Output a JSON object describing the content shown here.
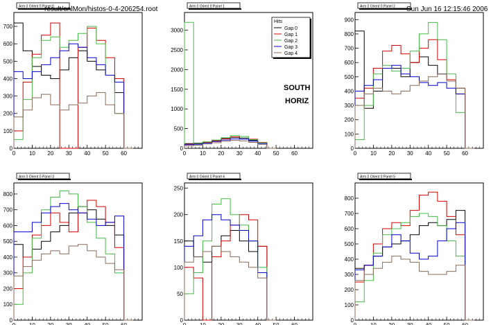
{
  "header": {
    "file_label": "result/onlMon/histos-0-4-206254.root",
    "timestamp": "Sun Jun 16 12:15:46 2006"
  },
  "annotation": {
    "line1": "SOUTH",
    "line2": "HORIZ"
  },
  "colors": {
    "gap0": "#000000",
    "gap1": "#d40000",
    "gap2": "#44bb44",
    "gap3": "#0000cc",
    "gap4": "#8b6a5a"
  },
  "legend": {
    "title": "Hits",
    "entries": [
      "Gap 0",
      "Gap 1",
      "Gap 2",
      "Gap 3",
      "Gap 4"
    ]
  },
  "chart_data": [
    {
      "type": "line",
      "title": "Arm 0 Orient 0 Panel 0",
      "xlim": [
        0,
        70
      ],
      "ylim": [
        0,
        780
      ],
      "xticks": [
        0,
        10,
        20,
        30,
        40,
        50,
        60
      ],
      "yticks": [
        0,
        100,
        200,
        300,
        400,
        500,
        600,
        700
      ],
      "series": [
        {
          "name": "Gap 0",
          "x": [
            0,
            5,
            10,
            15,
            20,
            25,
            30,
            35,
            40,
            45,
            50,
            55,
            60
          ],
          "y": [
            720,
            560,
            470,
            420,
            400,
            450,
            520,
            560,
            500,
            450,
            420,
            320,
            0
          ]
        },
        {
          "name": "Gap 1",
          "x": [
            0,
            5,
            10,
            15,
            20,
            25,
            30,
            35,
            40,
            45,
            50,
            55,
            60
          ],
          "y": [
            100,
            380,
            540,
            650,
            720,
            0,
            0,
            580,
            690,
            620,
            520,
            400,
            0
          ]
        },
        {
          "name": "Gap 2",
          "x": [
            0,
            5,
            10,
            15,
            20,
            25,
            30,
            35,
            40,
            45,
            50,
            55,
            60
          ],
          "y": [
            50,
            280,
            520,
            620,
            640,
            580,
            620,
            660,
            700,
            600,
            420,
            200,
            0
          ]
        },
        {
          "name": "Gap 3",
          "x": [
            0,
            5,
            10,
            15,
            20,
            25,
            30,
            35,
            40,
            45,
            50,
            55,
            60
          ],
          "y": [
            440,
            400,
            440,
            480,
            520,
            560,
            600,
            580,
            520,
            480,
            420,
            380,
            0
          ]
        },
        {
          "name": "Gap 4",
          "x": [
            0,
            5,
            10,
            15,
            20,
            25,
            30,
            35,
            40,
            45,
            50,
            55,
            60
          ],
          "y": [
            180,
            220,
            290,
            310,
            250,
            220,
            250,
            260,
            300,
            320,
            250,
            200,
            0
          ]
        }
      ]
    },
    {
      "type": "line",
      "title": "Arm 0 Orient 0 Panel 1",
      "xlim": [
        0,
        70
      ],
      "ylim": [
        0,
        3450
      ],
      "xticks": [
        0,
        10,
        20,
        30,
        40,
        50,
        60
      ],
      "yticks": [
        0,
        500,
        1000,
        1500,
        2000,
        2500,
        3000
      ],
      "series": [
        {
          "name": "Gap 0",
          "x": [
            0,
            5,
            10,
            15,
            20,
            25,
            30,
            35,
            40,
            45
          ],
          "y": [
            120,
            130,
            160,
            200,
            250,
            280,
            260,
            200,
            140,
            0
          ]
        },
        {
          "name": "Gap 1",
          "x": [
            0,
            5,
            10,
            15,
            20,
            25,
            30,
            35,
            40,
            45
          ],
          "y": [
            100,
            110,
            150,
            190,
            240,
            290,
            300,
            230,
            150,
            0
          ]
        },
        {
          "name": "Gap 2",
          "x": [
            0,
            5,
            10,
            15,
            20,
            25,
            30,
            35,
            40,
            45
          ],
          "y": [
            3200,
            120,
            160,
            210,
            270,
            320,
            300,
            220,
            140,
            0
          ]
        },
        {
          "name": "Gap 3",
          "x": [
            0,
            5,
            10,
            15,
            20,
            25,
            30,
            35,
            40,
            45
          ],
          "y": [
            90,
            100,
            130,
            170,
            210,
            240,
            230,
            180,
            120,
            0
          ]
        },
        {
          "name": "Gap 4",
          "x": [
            0,
            5,
            10,
            15,
            20,
            25,
            30,
            35,
            40,
            45
          ],
          "y": [
            60,
            80,
            110,
            140,
            180,
            200,
            190,
            150,
            100,
            0
          ]
        }
      ]
    },
    {
      "type": "line",
      "title": "Arm 0 Orient 0 Panel 2",
      "xlim": [
        0,
        70
      ],
      "ylim": [
        0,
        950
      ],
      "xticks": [
        0,
        10,
        20,
        30,
        40,
        50,
        60
      ],
      "yticks": [
        0,
        100,
        200,
        300,
        400,
        500,
        600,
        700,
        800,
        900
      ],
      "series": [
        {
          "name": "Gap 0",
          "x": [
            0,
            5,
            10,
            15,
            20,
            25,
            30,
            35,
            40,
            45,
            50,
            55,
            60
          ],
          "y": [
            820,
            280,
            400,
            560,
            560,
            500,
            600,
            640,
            580,
            520,
            480,
            420,
            0
          ]
        },
        {
          "name": "Gap 1",
          "x": [
            0,
            5,
            10,
            15,
            20,
            25,
            30,
            35,
            40,
            45,
            50,
            55,
            60
          ],
          "y": [
            350,
            420,
            560,
            680,
            720,
            660,
            600,
            700,
            760,
            620,
            480,
            380,
            0
          ]
        },
        {
          "name": "Gap 2",
          "x": [
            0,
            5,
            10,
            15,
            20,
            25,
            30,
            35,
            40,
            45,
            50,
            55,
            60
          ],
          "y": [
            60,
            300,
            520,
            580,
            540,
            560,
            680,
            800,
            880,
            760,
            520,
            250,
            0
          ]
        },
        {
          "name": "Gap 3",
          "x": [
            0,
            5,
            10,
            15,
            20,
            25,
            30,
            35,
            40,
            45,
            50,
            55,
            60
          ],
          "y": [
            400,
            440,
            480,
            560,
            580,
            520,
            500,
            460,
            440,
            460,
            420,
            380,
            0
          ]
        },
        {
          "name": "Gap 4",
          "x": [
            0,
            5,
            10,
            15,
            20,
            25,
            30,
            35,
            40,
            45,
            50,
            55,
            60
          ],
          "y": [
            300,
            380,
            420,
            400,
            380,
            400,
            440,
            470,
            500,
            520,
            470,
            420,
            0
          ]
        }
      ]
    },
    {
      "type": "line",
      "title": "Arm 0 Orient 0 Panel 3",
      "xlim": [
        0,
        70
      ],
      "ylim": [
        0,
        870
      ],
      "xticks": [
        0,
        10,
        20,
        30,
        40,
        50,
        60
      ],
      "yticks": [
        0,
        100,
        200,
        300,
        400,
        500,
        600,
        700,
        800
      ],
      "series": [
        {
          "name": "Gap 0",
          "x": [
            0,
            5,
            10,
            15,
            20,
            25,
            30,
            35,
            40,
            45,
            50,
            55,
            60
          ],
          "y": [
            480,
            400,
            450,
            500,
            560,
            600,
            680,
            720,
            700,
            640,
            600,
            540,
            0
          ]
        },
        {
          "name": "Gap 1",
          "x": [
            0,
            5,
            10,
            15,
            20,
            25,
            30,
            35,
            40,
            45,
            50,
            55,
            60
          ],
          "y": [
            200,
            400,
            540,
            600,
            680,
            620,
            560,
            680,
            760,
            720,
            620,
            460,
            0
          ]
        },
        {
          "name": "Gap 2",
          "x": [
            0,
            5,
            10,
            15,
            20,
            25,
            30,
            35,
            40,
            45,
            50,
            55,
            60
          ],
          "y": [
            100,
            300,
            520,
            700,
            780,
            820,
            800,
            720,
            620,
            520,
            420,
            300,
            0
          ]
        },
        {
          "name": "Gap 3",
          "x": [
            0,
            5,
            10,
            15,
            20,
            25,
            30,
            35,
            40,
            45,
            50,
            55,
            60
          ],
          "y": [
            560,
            560,
            620,
            680,
            720,
            740,
            700,
            680,
            640,
            600,
            620,
            660,
            0
          ]
        },
        {
          "name": "Gap 4",
          "x": [
            0,
            5,
            10,
            15,
            20,
            25,
            30,
            35,
            40,
            45,
            50,
            55,
            60
          ],
          "y": [
            280,
            340,
            380,
            420,
            440,
            420,
            470,
            480,
            440,
            400,
            360,
            320,
            0
          ]
        }
      ]
    },
    {
      "type": "line",
      "title": "Arm 0 Orient 0 Panel 4",
      "xlim": [
        0,
        70
      ],
      "ylim": [
        0,
        260
      ],
      "xticks": [
        0,
        10,
        20,
        30,
        40,
        50,
        60
      ],
      "yticks": [
        0,
        50,
        100,
        150,
        200,
        250
      ],
      "series": [
        {
          "name": "Gap 0",
          "x": [
            0,
            5,
            10,
            15,
            20,
            25,
            30,
            35,
            40,
            45
          ],
          "y": [
            150,
            120,
            110,
            140,
            160,
            170,
            150,
            130,
            140,
            0
          ]
        },
        {
          "name": "Gap 1",
          "x": [
            0,
            5,
            10,
            15,
            20,
            25,
            30,
            35,
            40,
            45
          ],
          "y": [
            100,
            80,
            0,
            120,
            150,
            180,
            200,
            190,
            140,
            0
          ]
        },
        {
          "name": "Gap 2",
          "x": [
            0,
            5,
            10,
            15,
            20,
            25,
            30,
            35,
            40,
            45
          ],
          "y": [
            50,
            90,
            150,
            220,
            230,
            200,
            180,
            150,
            100,
            0
          ]
        },
        {
          "name": "Gap 3",
          "x": [
            0,
            5,
            10,
            15,
            20,
            25,
            30,
            35,
            40,
            45
          ],
          "y": [
            140,
            160,
            190,
            200,
            190,
            180,
            170,
            150,
            90,
            0
          ]
        },
        {
          "name": "Gap 4",
          "x": [
            0,
            5,
            10,
            15,
            20,
            25,
            30,
            35,
            40,
            45
          ],
          "y": [
            110,
            120,
            130,
            140,
            130,
            120,
            110,
            100,
            80,
            0
          ]
        }
      ]
    },
    {
      "type": "line",
      "title": "Arm 0 Orient 0 Panel 5",
      "xlim": [
        0,
        70
      ],
      "ylim": [
        0,
        900
      ],
      "xticks": [
        0,
        10,
        20,
        30,
        40,
        50,
        60
      ],
      "yticks": [
        0,
        100,
        200,
        300,
        400,
        500,
        600,
        700,
        800
      ],
      "series": [
        {
          "name": "Gap 0",
          "x": [
            0,
            5,
            10,
            15,
            20,
            25,
            30,
            35,
            40,
            45,
            50,
            55,
            60
          ],
          "y": [
            340,
            360,
            420,
            480,
            500,
            520,
            560,
            620,
            640,
            620,
            660,
            720,
            0
          ]
        },
        {
          "name": "Gap 1",
          "x": [
            0,
            5,
            10,
            15,
            20,
            25,
            30,
            35,
            40,
            45,
            50,
            55,
            60
          ],
          "y": [
            250,
            360,
            500,
            600,
            640,
            620,
            720,
            820,
            840,
            780,
            680,
            560,
            0
          ]
        },
        {
          "name": "Gap 2",
          "x": [
            0,
            5,
            10,
            15,
            20,
            25,
            30,
            35,
            40,
            45,
            50,
            55,
            60
          ],
          "y": [
            120,
            260,
            440,
            560,
            600,
            640,
            680,
            700,
            680,
            620,
            520,
            420,
            0
          ]
        },
        {
          "name": "Gap 3",
          "x": [
            0,
            5,
            10,
            15,
            20,
            25,
            30,
            35,
            40,
            45,
            50,
            55,
            60
          ],
          "y": [
            330,
            360,
            420,
            480,
            560,
            520,
            440,
            400,
            420,
            520,
            600,
            640,
            0
          ]
        },
        {
          "name": "Gap 4",
          "x": [
            0,
            5,
            10,
            15,
            20,
            25,
            30,
            35,
            40,
            45,
            50,
            55,
            60
          ],
          "y": [
            260,
            300,
            340,
            380,
            420,
            400,
            380,
            320,
            300,
            300,
            320,
            360,
            0
          ]
        }
      ]
    }
  ]
}
